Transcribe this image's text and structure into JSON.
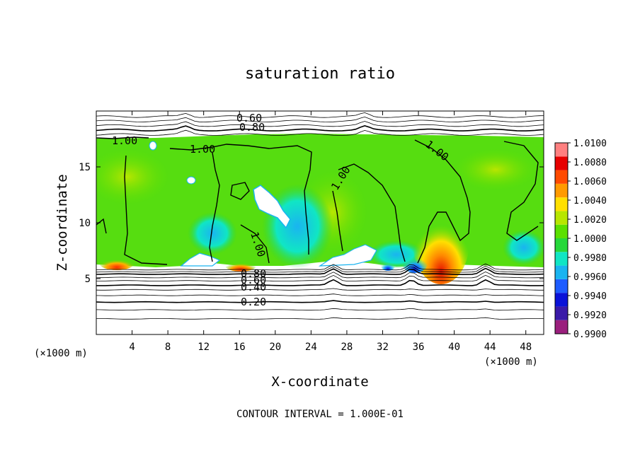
{
  "chart_data": {
    "type": "heatmap",
    "title": "saturation ratio",
    "xlabel": "X-coordinate",
    "ylabel": "Z-coordinate",
    "x_unit": "(×1000 m)",
    "y_unit": "(×1000 m)",
    "xlim": [
      0,
      50
    ],
    "ylim": [
      0,
      20
    ],
    "x_ticks": [
      "4",
      "8",
      "12",
      "16",
      "20",
      "24",
      "28",
      "32",
      "36",
      "40",
      "44",
      "48"
    ],
    "y_ticks": [
      "5",
      "10",
      "15"
    ],
    "colorbar": {
      "range": [
        0.99,
        1.01
      ],
      "levels": [
        "1.0100",
        "1.0080",
        "1.0060",
        "1.0040",
        "1.0020",
        "1.0000",
        "0.9980",
        "0.9960",
        "0.9940",
        "0.9920",
        "0.9900"
      ],
      "colors": [
        "#9a1f7d",
        "#3a1aa8",
        "#0a12d8",
        "#1e5cff",
        "#1ab4f0",
        "#10e6c4",
        "#26d83a",
        "#5be000",
        "#b8e600",
        "#ffe000",
        "#ff9a00",
        "#ff4a00",
        "#e60000",
        "#ff8080"
      ]
    },
    "contour_labels": [
      "0.60",
      "0.80",
      "1.00",
      "1.00",
      "1.00",
      "1.00",
      "1.00",
      "0.80",
      "0.60",
      "0.40",
      "0.20"
    ],
    "contour_levels_lower": [
      0.2,
      0.4,
      0.6,
      0.8
    ],
    "contour_levels_upper": [
      0.6,
      0.8
    ],
    "saturated_layer_z": [
      6,
      17.5
    ],
    "hotspots": [
      {
        "x": 38.5,
        "z": 6.5,
        "value": 1.008
      },
      {
        "x": 3.0,
        "z": 6.2,
        "value": 1.004
      },
      {
        "x": 14.5,
        "z": 6.3,
        "value": 1.002
      },
      {
        "x": 35.3,
        "z": 6.2,
        "value": 0.992
      }
    ],
    "contour_interval_note": "CONTOUR INTERVAL = 1.000E-01"
  }
}
